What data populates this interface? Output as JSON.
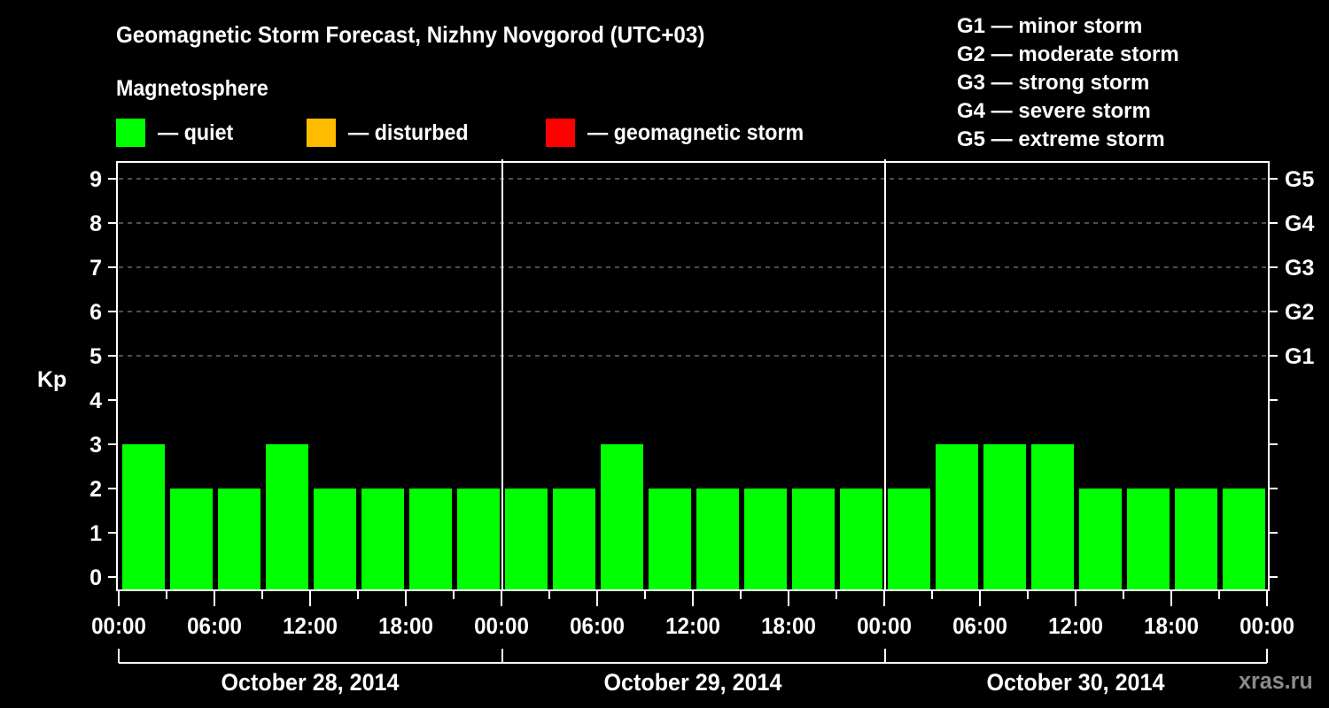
{
  "header": {
    "title": "Geomagnetic Storm Forecast, Nizhny Novgorod (UTC+03)",
    "subtitle": "Magnetosphere"
  },
  "legend": [
    {
      "label": "— quiet",
      "color": "#00ff00"
    },
    {
      "label": "— disturbed",
      "color": "#ffbb00"
    },
    {
      "label": "— geomagnetic storm",
      "color": "#ff0000"
    }
  ],
  "storm_scale": [
    "G1 — minor storm",
    "G2 — moderate storm",
    "G3 — strong storm",
    "G4 — severe storm",
    "G5 — extreme storm"
  ],
  "watermark": "xras.ru",
  "chart_data": {
    "type": "bar",
    "title": "Geomagnetic Storm Forecast, Nizhny Novgorod (UTC+03)",
    "ylabel": "Kp",
    "xlabel": "",
    "ylim": [
      0,
      9
    ],
    "yticks": [
      0,
      1,
      2,
      3,
      4,
      5,
      6,
      7,
      8,
      9
    ],
    "right_axis_labels": [
      {
        "kp": 5,
        "label": "G1"
      },
      {
        "kp": 6,
        "label": "G2"
      },
      {
        "kp": 7,
        "label": "G3"
      },
      {
        "kp": 8,
        "label": "G4"
      },
      {
        "kp": 9,
        "label": "G5"
      }
    ],
    "grid": "dashed horizontal lines at Kp 5-9",
    "xtick_labels": [
      "00:00",
      "06:00",
      "12:00",
      "18:00",
      "00:00",
      "06:00",
      "12:00",
      "18:00",
      "00:00",
      "06:00",
      "12:00",
      "18:00",
      "00:00"
    ],
    "days": [
      "October 28, 2014",
      "October 29, 2014",
      "October 30, 2014"
    ],
    "interval_hours": 3,
    "categories": [
      "Oct 28 00-03",
      "Oct 28 03-06",
      "Oct 28 06-09",
      "Oct 28 09-12",
      "Oct 28 12-15",
      "Oct 28 15-18",
      "Oct 28 18-21",
      "Oct 28 21-24",
      "Oct 29 00-03",
      "Oct 29 03-06",
      "Oct 29 06-09",
      "Oct 29 09-12",
      "Oct 29 12-15",
      "Oct 29 15-18",
      "Oct 29 18-21",
      "Oct 29 21-24",
      "Oct 30 00-03",
      "Oct 30 03-06",
      "Oct 30 06-09",
      "Oct 30 09-12",
      "Oct 30 12-15",
      "Oct 30 15-18",
      "Oct 30 18-21",
      "Oct 30 21-24"
    ],
    "values": [
      3,
      2,
      2,
      3,
      2,
      2,
      2,
      2,
      2,
      2,
      3,
      2,
      2,
      2,
      2,
      2,
      2,
      3,
      3,
      3,
      2,
      2,
      2,
      2
    ],
    "bar_color": "#00ff00",
    "status": "quiet"
  }
}
